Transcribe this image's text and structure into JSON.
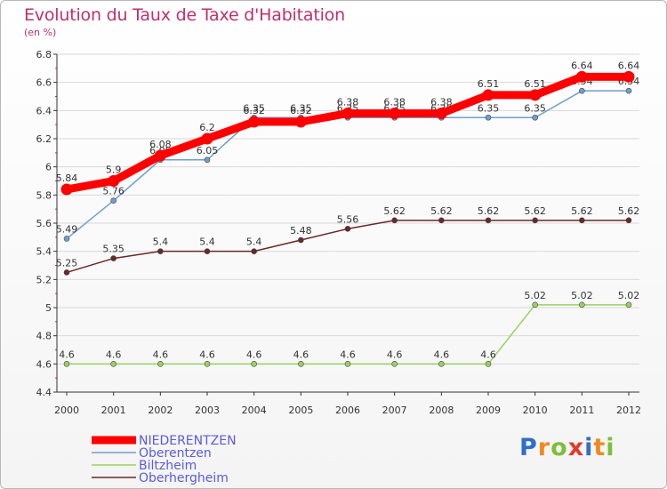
{
  "chart_data": {
    "type": "line",
    "title": "Evolution du Taux de Taxe d'Habitation",
    "subtitle": "(en %)",
    "x": [
      "2000",
      "2001",
      "2002",
      "2003",
      "2004",
      "2005",
      "2006",
      "2007",
      "2008",
      "2009",
      "2010",
      "2011",
      "2012"
    ],
    "ylim": [
      4.4,
      6.8
    ],
    "yticks": [
      4.4,
      4.6,
      4.8,
      5,
      5.2,
      5.4,
      5.6,
      5.8,
      6,
      6.2,
      6.4,
      6.6,
      6.8
    ],
    "ytick_labels": [
      "4.4",
      "4.6",
      "4.8",
      "5",
      "5.2",
      "5.4",
      "5.6",
      "5.8",
      "6",
      "6.2",
      "6.4",
      "6.6",
      "6.8"
    ],
    "grid": "horizontal",
    "legend_position": "bottom-left",
    "series": [
      {
        "name": "NIEDERENTZEN",
        "color": "#ff0000",
        "values": [
          5.84,
          5.9,
          6.08,
          6.2,
          6.32,
          6.32,
          6.38,
          6.38,
          6.38,
          6.51,
          6.51,
          6.64,
          6.64
        ],
        "labels": [
          "5.84",
          "5.9",
          "6.08",
          "6.2",
          "6.32",
          "6.32",
          "6.38",
          "6.38",
          "6.38",
          "6.51",
          "6.51",
          "6.64",
          "6.64"
        ]
      },
      {
        "name": "Oberentzen",
        "color": "#6f9fd0",
        "values": [
          5.49,
          5.76,
          6.05,
          6.05,
          6.35,
          6.35,
          6.35,
          6.35,
          6.35,
          6.35,
          6.35,
          6.54,
          6.54
        ],
        "labels": [
          "5.49",
          "5.76",
          "6.05",
          "6.05",
          "6.35",
          "6.35",
          "6.35",
          "6.35",
          "6.35",
          "6.35",
          "6.35",
          "6.54",
          "6.54"
        ]
      },
      {
        "name": "Biltzheim",
        "color": "#99d160",
        "values": [
          4.6,
          4.6,
          4.6,
          4.6,
          4.6,
          4.6,
          4.6,
          4.6,
          4.6,
          4.6,
          5.02,
          5.02,
          5.02
        ],
        "labels": [
          "4.6",
          "4.6",
          "4.6",
          "4.6",
          "4.6",
          "4.6",
          "4.6",
          "4.6",
          "4.6",
          "4.6",
          "5.02",
          "5.02",
          "5.02"
        ]
      },
      {
        "name": "Oberhergheim",
        "color": "#6b2828",
        "values": [
          5.25,
          5.35,
          5.4,
          5.4,
          5.4,
          5.48,
          5.56,
          5.62,
          5.62,
          5.62,
          5.62,
          5.62,
          5.62
        ],
        "labels": [
          "5.25",
          "5.35",
          "5.4",
          "5.4",
          "5.4",
          "5.48",
          "5.56",
          "5.62",
          "5.62",
          "5.62",
          "5.62",
          "5.62",
          "5.62"
        ]
      }
    ],
    "colors": {
      "title": "#c0306a",
      "axis": "#333333",
      "grid": "#d9d9d9",
      "legend_highlight": "#5b5bdc"
    }
  },
  "logo": {
    "letters": [
      "P",
      "r",
      "o",
      "x",
      "i",
      "t",
      "i"
    ],
    "colors": [
      "#2f6fc6",
      "#f08a1e",
      "#7cbf3a",
      "#e23b2a",
      "#2f6fc6",
      "#f08a1e",
      "#7cbf3a"
    ]
  }
}
